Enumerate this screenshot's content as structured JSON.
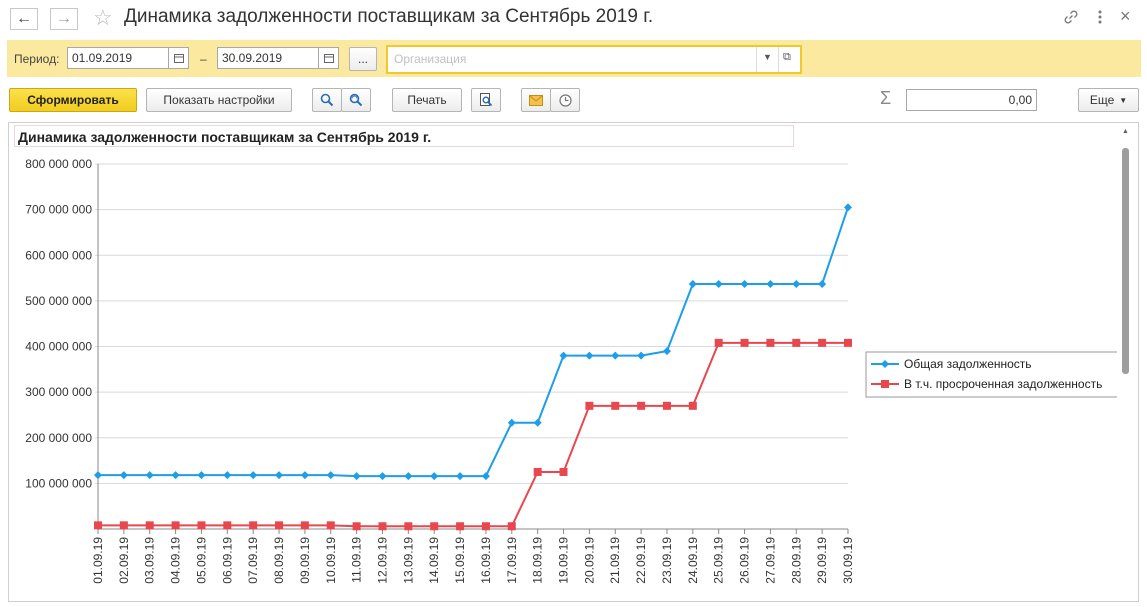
{
  "header": {
    "back_icon": "arrow-left-icon",
    "forward_icon": "arrow-right-icon",
    "favorite_icon": "star-icon",
    "title": "Динамика задолженности поставщикам за Сентябрь 2019 г.",
    "link_icon": "link-icon",
    "more_icon": "more-vertical-icon",
    "close_icon": "close-icon"
  },
  "filters": {
    "period_label": "Период:",
    "date_from": "01.09.2019",
    "dash": "–",
    "date_to": "30.09.2019",
    "select_period_label": "...",
    "organization_placeholder": "Организация"
  },
  "toolbar": {
    "generate_label": "Сформировать",
    "settings_label": "Показать настройки",
    "print_label": "Печать",
    "sum_symbol": "Σ",
    "sum_value": "0,00",
    "more_label": "Еще",
    "colors": {
      "accent": "#f5d327",
      "panel": "#fbe9a0"
    }
  },
  "report": {
    "title": "Динамика задолженности поставщикам за Сентябрь 2019 г."
  },
  "chart_data": {
    "type": "line",
    "categories": [
      "01.09.19",
      "02.09.19",
      "03.09.19",
      "04.09.19",
      "05.09.19",
      "06.09.19",
      "07.09.19",
      "08.09.19",
      "09.09.19",
      "10.09.19",
      "11.09.19",
      "12.09.19",
      "13.09.19",
      "14.09.19",
      "15.09.19",
      "16.09.19",
      "17.09.19",
      "18.09.19",
      "19.09.19",
      "20.09.19",
      "21.09.19",
      "22.09.19",
      "23.09.19",
      "24.09.19",
      "25.09.19",
      "26.09.19",
      "27.09.19",
      "28.09.19",
      "29.09.19",
      "30.09.19"
    ],
    "series": [
      {
        "name": "Общая задолженность",
        "color": "#1e9de8",
        "marker": "diamond",
        "values": [
          118000000,
          118000000,
          118000000,
          118000000,
          118000000,
          118000000,
          118000000,
          118000000,
          118000000,
          118000000,
          116000000,
          116000000,
          116000000,
          116000000,
          116000000,
          116000000,
          233000000,
          233000000,
          380000000,
          380000000,
          380000000,
          380000000,
          390000000,
          537000000,
          537000000,
          537000000,
          537000000,
          537000000,
          537000000,
          705000000
        ]
      },
      {
        "name": "В т.ч. просроченная задолженность",
        "color": "#e8474d",
        "marker": "square",
        "values": [
          8000000,
          8000000,
          8000000,
          8000000,
          8000000,
          8000000,
          8000000,
          8000000,
          8000000,
          8000000,
          6000000,
          6000000,
          6000000,
          6000000,
          6000000,
          6000000,
          6000000,
          125000000,
          125000000,
          270000000,
          270000000,
          270000000,
          270000000,
          270000000,
          408000000,
          408000000,
          408000000,
          408000000,
          408000000,
          408000000
        ]
      }
    ],
    "yticks": [
      "800 000 000",
      "700 000 000",
      "600 000 000",
      "500 000 000",
      "400 000 000",
      "300 000 000",
      "200 000 000",
      "100 000 000"
    ],
    "ylim": [
      0,
      800000000
    ],
    "grid": true,
    "legend_position": "right"
  }
}
